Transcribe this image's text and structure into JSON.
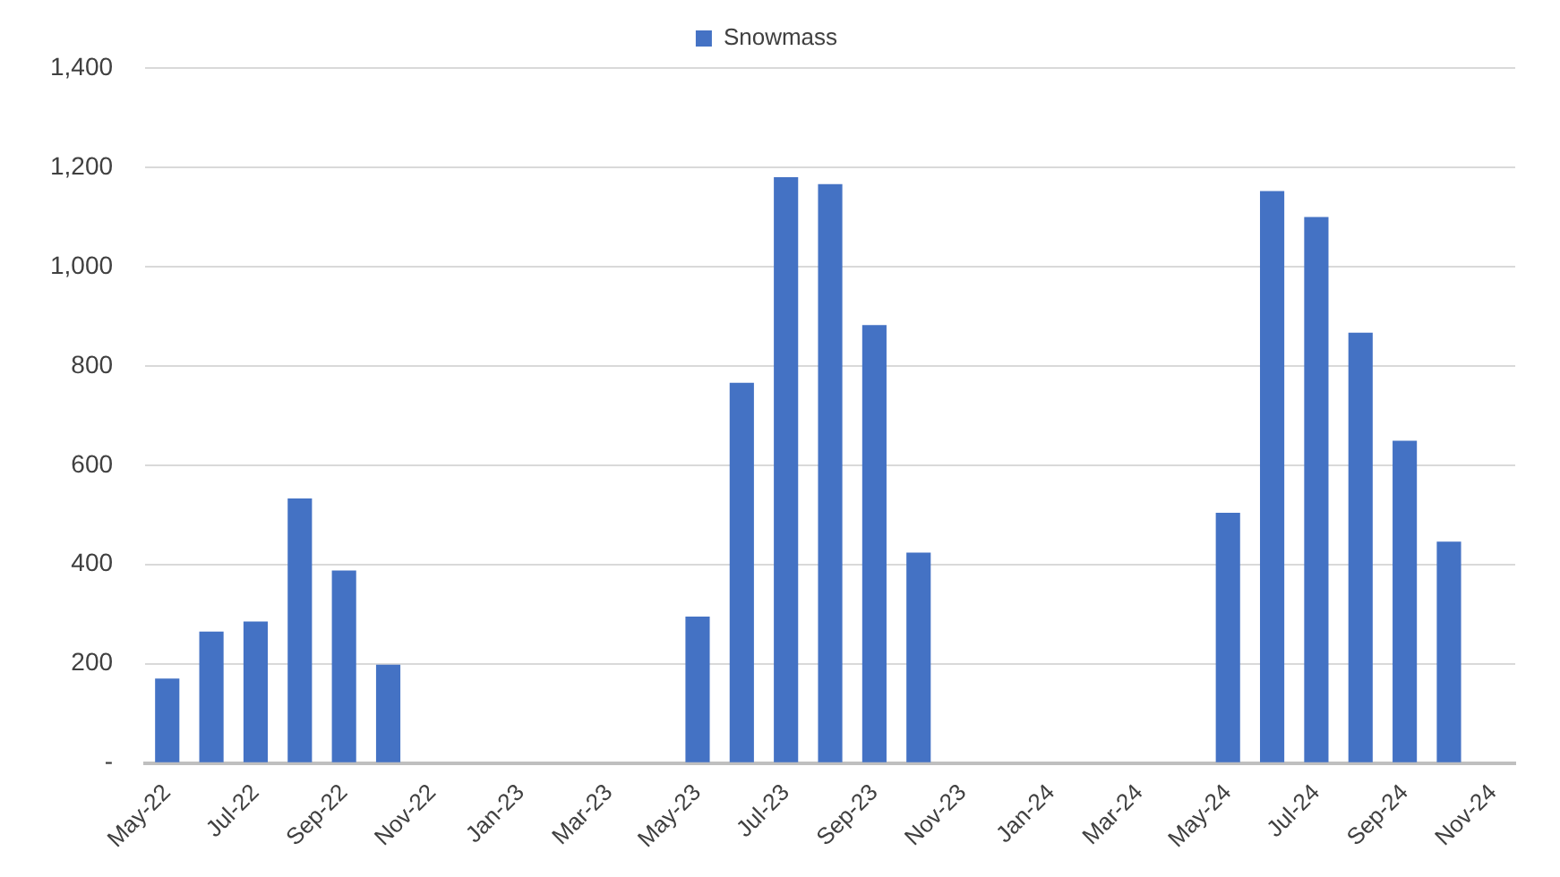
{
  "chart_data": {
    "type": "bar",
    "categories": [
      "May-22",
      null,
      "Jul-22",
      null,
      "Sep-22",
      null,
      "Nov-22",
      null,
      "Jan-23",
      null,
      "Mar-23",
      null,
      "May-23",
      null,
      "Jul-23",
      null,
      "Sep-23",
      null,
      "Nov-23",
      null,
      "Jan-24",
      null,
      "Mar-24",
      null,
      "May-24",
      null,
      "Jul-24",
      null,
      "Sep-24",
      null,
      "Nov-24"
    ],
    "series": [
      {
        "name": "Snowmass",
        "color": "#4472c4",
        "values": [
          170,
          265,
          285,
          533,
          388,
          198,
          null,
          null,
          null,
          null,
          null,
          null,
          295,
          766,
          1180,
          1166,
          882,
          424,
          null,
          null,
          null,
          null,
          null,
          null,
          504,
          1152,
          1100,
          867,
          649,
          446,
          null
        ]
      }
    ],
    "ylim": [
      0,
      1400
    ],
    "yticks": [
      {
        "value": 0,
        "label": "-"
      },
      {
        "value": 200,
        "label": "200"
      },
      {
        "value": 400,
        "label": "400"
      },
      {
        "value": 600,
        "label": "600"
      },
      {
        "value": 800,
        "label": "800"
      },
      {
        "value": 1000,
        "label": "1,000"
      },
      {
        "value": 1200,
        "label": "1,200"
      },
      {
        "value": 1400,
        "label": "1,400"
      }
    ],
    "grid": "y",
    "legend": "top"
  }
}
